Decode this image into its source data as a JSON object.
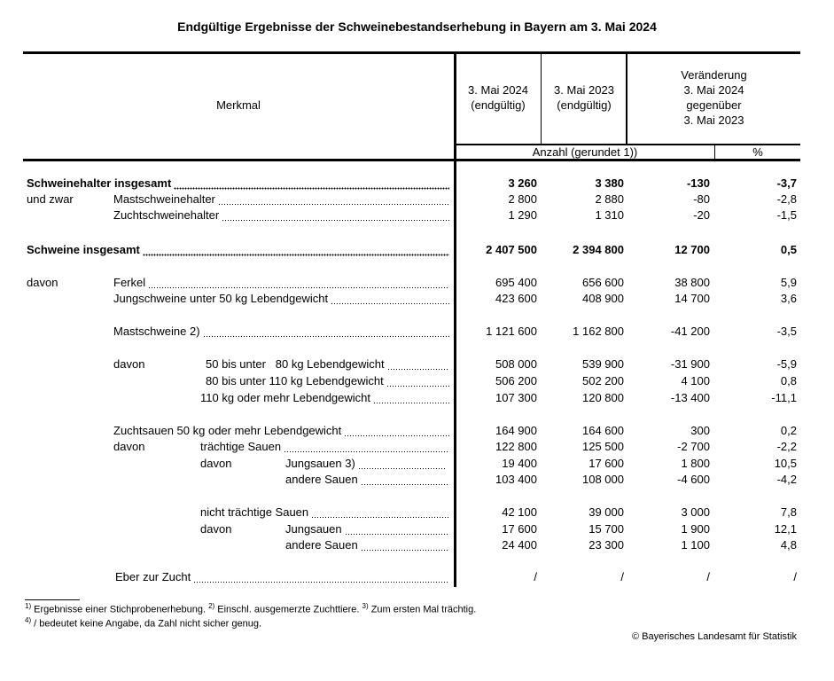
{
  "title": "Endgültige Ergebnisse der Schweinebestandserhebung in Bayern am 3. Mai 2024",
  "header": {
    "merkmal": "Merkmal",
    "col1": "3. Mai 2024\n(endgültig)",
    "col2": "3. Mai 2023\n(endgültig)",
    "col3": "Veränderung\n3. Mai 2024\ngegenüber\n3. Mai 2023",
    "unit_count": "Anzahl (gerundet 1))",
    "unit_percent": "%"
  },
  "rows": [
    {
      "prefix": "",
      "label": "Schweinehalter insgesamt",
      "bold": true,
      "values": [
        "3 260",
        "3 380",
        "-130",
        "-3,7"
      ]
    },
    {
      "prefix": "und zwar",
      "label": "Mastschweinehalter",
      "bold": false,
      "values": [
        "2 800",
        "2 880",
        "-80",
        "-2,8"
      ]
    },
    {
      "prefix": "",
      "label": "Zuchtschweinehalter",
      "bold": false,
      "values": [
        "1 290",
        "1 310",
        "-20",
        "-1,5"
      ]
    },
    {
      "prefix": "",
      "label": "Schweine insgesamt",
      "bold": true,
      "values": [
        "2 407 500",
        "2 394 800",
        "12 700",
        "0,5"
      ]
    },
    {
      "prefix": "davon",
      "label": "Ferkel",
      "bold": false,
      "values": [
        "695 400",
        "656 600",
        "38 800",
        "5,9"
      ]
    },
    {
      "prefix": "",
      "label": "Jungschweine unter 50 kg Lebendgewicht",
      "bold": false,
      "values": [
        "423 600",
        "408 900",
        "14 700",
        "3,6"
      ]
    },
    {
      "prefix": "",
      "label": "Mastschweine 2)",
      "bold": false,
      "values": [
        "1 121 600",
        "1 162 800",
        "-41 200",
        "-3,5"
      ]
    },
    {
      "prefix": "davon",
      "label": "50 bis unter   80 kg Lebendgewicht",
      "bold": false,
      "values": [
        "508 000",
        "539 900",
        "-31 900",
        "-5,9"
      ]
    },
    {
      "prefix": "",
      "label": "80 bis unter 110 kg Lebendgewicht",
      "bold": false,
      "values": [
        "506 200",
        "502 200",
        "4 100",
        "0,8"
      ]
    },
    {
      "prefix": "",
      "label": "110 kg oder mehr Lebendgewicht",
      "bold": false,
      "values": [
        "107 300",
        "120 800",
        "-13 400",
        "-11,1"
      ]
    },
    {
      "prefix": "",
      "label": "Zuchtsauen 50 kg oder mehr Lebendgewicht",
      "bold": false,
      "values": [
        "164 900",
        "164 600",
        "300",
        "0,2"
      ]
    },
    {
      "prefix": "davon",
      "label": "trächtige Sauen",
      "bold": false,
      "values": [
        "122 800",
        "125 500",
        "-2 700",
        "-2,2"
      ]
    },
    {
      "prefix": "davon",
      "label": "Jungsauen 3)",
      "bold": false,
      "values": [
        "19 400",
        "17 600",
        "1 800",
        "10,5"
      ]
    },
    {
      "prefix": "",
      "label": "andere Sauen",
      "bold": false,
      "values": [
        "103 400",
        "108 000",
        "-4 600",
        "-4,2"
      ]
    },
    {
      "prefix": "",
      "label": "nicht trächtige Sauen",
      "bold": false,
      "values": [
        "42 100",
        "39 000",
        "3 000",
        "7,8"
      ]
    },
    {
      "prefix": "davon",
      "label": "Jungsauen",
      "bold": false,
      "values": [
        "17 600",
        "15 700",
        "1 900",
        "12,1"
      ]
    },
    {
      "prefix": "",
      "label": "andere Sauen",
      "bold": false,
      "values": [
        "24 400",
        "23 300",
        "1 100",
        "4,8"
      ]
    },
    {
      "prefix": "",
      "label": "Eber zur Zucht",
      "bold": false,
      "values": [
        "/",
        "/",
        "/",
        "/"
      ]
    }
  ],
  "footnotes": {
    "fn1_mark": "1)",
    "fn1": " Ergebnisse einer Stichprobenerhebung. ",
    "fn2_mark": "2)",
    "fn2": " Einschl. ausgemerzte Zuchttiere. ",
    "fn3_mark": "3)",
    "fn3": " Zum ersten Mal trächtig.",
    "fn4_mark": "4)",
    "fn4": " / bedeutet keine Angabe, da Zahl nicht sicher genug."
  },
  "copyright": "© Bayerisches Landesamt für Statistik"
}
